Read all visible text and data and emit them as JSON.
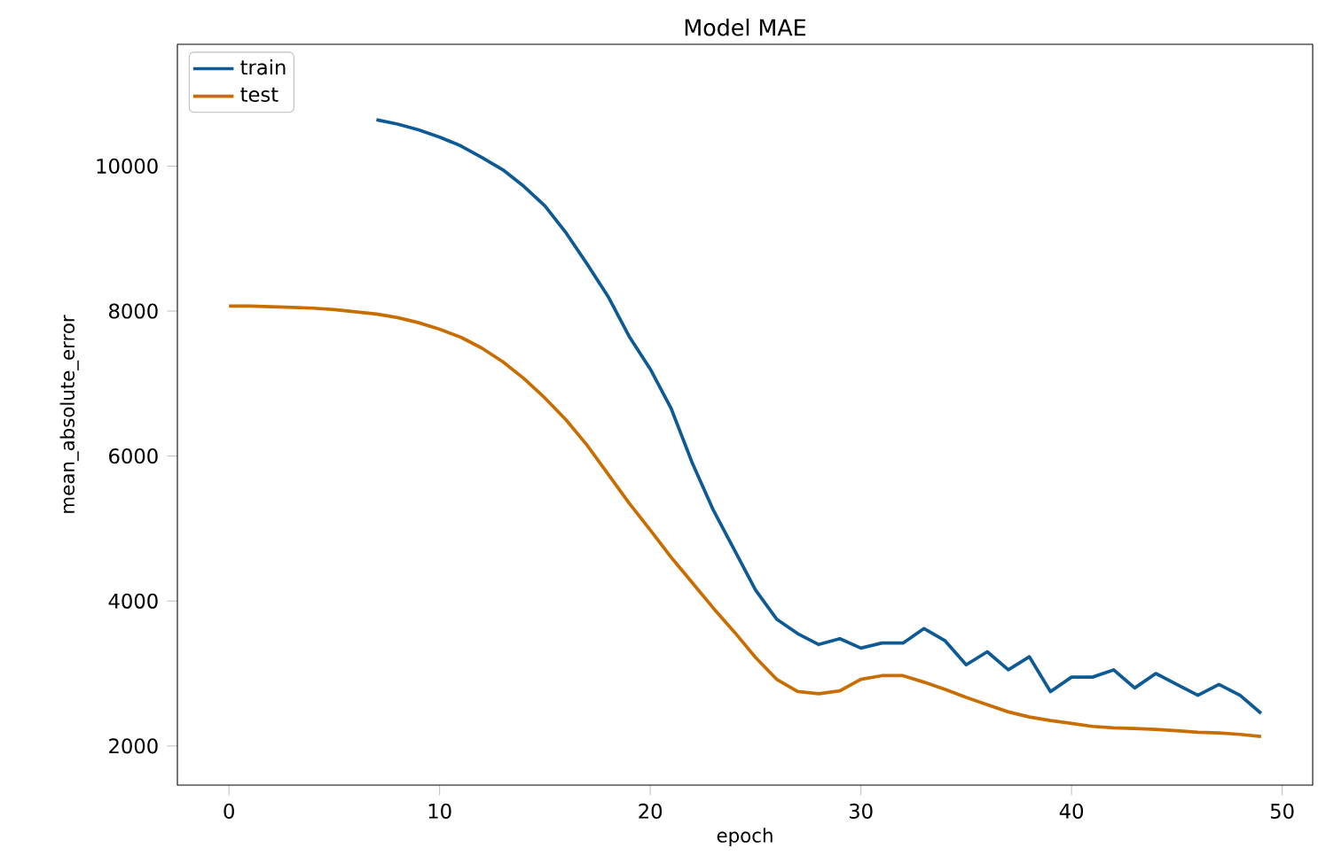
{
  "chart_data": {
    "type": "line",
    "title": "Model MAE",
    "xlabel": "epoch",
    "ylabel": "mean_absolute_error",
    "x": [
      0,
      1,
      2,
      3,
      4,
      5,
      6,
      7,
      8,
      9,
      10,
      11,
      12,
      13,
      14,
      15,
      16,
      17,
      18,
      19,
      20,
      21,
      22,
      23,
      24,
      25,
      26,
      27,
      28,
      29,
      30,
      31,
      32,
      33,
      34,
      35,
      36,
      37,
      38,
      39,
      40,
      41,
      42,
      43,
      44,
      45,
      46,
      47,
      48,
      49
    ],
    "series": [
      {
        "name": "train",
        "color": "#0e5a94",
        "values": [
          null,
          null,
          null,
          null,
          null,
          null,
          null,
          10640,
          10580,
          10500,
          10400,
          10280,
          10120,
          9950,
          9720,
          9450,
          9080,
          8650,
          8200,
          7650,
          7200,
          6650,
          5900,
          5250,
          4700,
          4150,
          3750,
          3550,
          3400,
          3480,
          3350,
          3420,
          3420,
          3620,
          3450,
          3120,
          3300,
          3050,
          3230,
          2750,
          2950,
          2950,
          3050,
          2800,
          3000,
          2850,
          2700,
          2850,
          2700,
          2450
        ]
      },
      {
        "name": "test",
        "color": "#c86e00",
        "values": [
          8070,
          8070,
          8060,
          8050,
          8040,
          8020,
          7990,
          7960,
          7910,
          7840,
          7750,
          7640,
          7490,
          7300,
          7070,
          6800,
          6500,
          6150,
          5750,
          5350,
          4980,
          4600,
          4250,
          3900,
          3570,
          3220,
          2920,
          2750,
          2720,
          2760,
          2920,
          2970,
          2970,
          2880,
          2780,
          2670,
          2570,
          2470,
          2400,
          2350,
          2310,
          2270,
          2250,
          2240,
          2230,
          2210,
          2190,
          2180,
          2160,
          2130
        ]
      }
    ],
    "xlim": [
      -2.45,
      51.45
    ],
    "ylim": [
      1460,
      11680
    ],
    "xticks": [
      0,
      10,
      20,
      30,
      40,
      50
    ],
    "yticks": [
      2000,
      4000,
      6000,
      8000,
      10000
    ],
    "legend": "top left",
    "grid": false,
    "marker": "none",
    "line_style": "solid"
  }
}
